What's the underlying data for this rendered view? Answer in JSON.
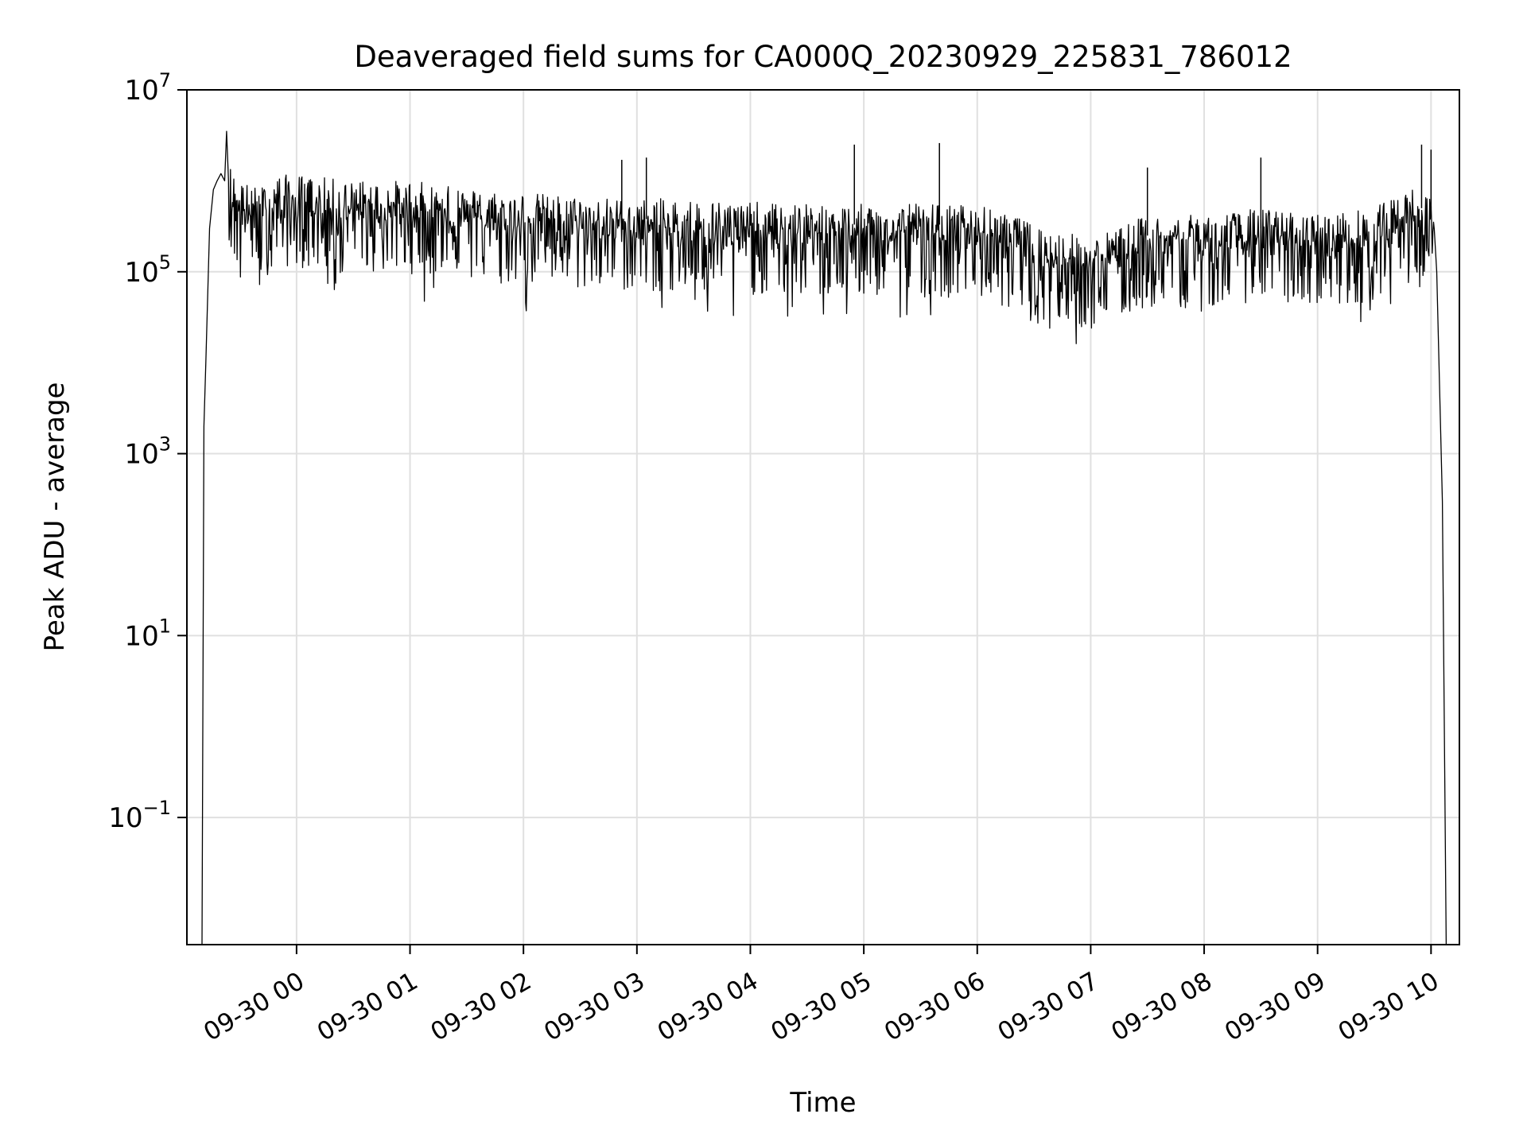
{
  "chart_data": {
    "type": "line",
    "title": "Deaveraged field sums for CA000Q_20230929_225831_786012",
    "xlabel": "Time",
    "ylabel": "Peak ADU - average",
    "yscale": "log",
    "ylim": [
      0.004,
      10000000
    ],
    "xlim": [
      "2023-09-29 23:02",
      "2023-09-30 10:15"
    ],
    "grid": true,
    "line_color": "#000000",
    "grid_color": "#e0e0e0",
    "x_ticks": [
      {
        "label": "09-30 00",
        "t": "2023-09-30 00:00"
      },
      {
        "label": "09-30 01",
        "t": "2023-09-30 01:00"
      },
      {
        "label": "09-30 02",
        "t": "2023-09-30 02:00"
      },
      {
        "label": "09-30 03",
        "t": "2023-09-30 03:00"
      },
      {
        "label": "09-30 04",
        "t": "2023-09-30 04:00"
      },
      {
        "label": "09-30 05",
        "t": "2023-09-30 05:00"
      },
      {
        "label": "09-30 06",
        "t": "2023-09-30 06:00"
      },
      {
        "label": "09-30 07",
        "t": "2023-09-30 07:00"
      },
      {
        "label": "09-30 08",
        "t": "2023-09-30 08:00"
      },
      {
        "label": "09-30 09",
        "t": "2023-09-30 09:00"
      },
      {
        "label": "09-30 10",
        "t": "2023-09-30 10:00"
      }
    ],
    "y_ticks": [
      {
        "base": "10",
        "exp": "7",
        "value": 10000000
      },
      {
        "base": "10",
        "exp": "5",
        "value": 100000
      },
      {
        "base": "10",
        "exp": "3",
        "value": 1000
      },
      {
        "base": "10",
        "exp": "1",
        "value": 10
      },
      {
        "base": "10",
        "exp": "−1",
        "value": 0.1
      }
    ],
    "series": [
      {
        "x": [
          "2023-09-29 23:10",
          "2023-09-29 23:11",
          "2023-09-29 23:12",
          "2023-09-29 23:14",
          "2023-09-29 23:16",
          "2023-09-29 23:18",
          "2023-09-29 23:20",
          "2023-09-29 23:22",
          "2023-09-29 23:23",
          "2023-09-29 23:25",
          "2023-09-29 23:30",
          "2023-09-29 23:40",
          "2023-09-29 23:50",
          "2023-09-30 00:00",
          "2023-09-30 00:30",
          "2023-09-30 01:00",
          "2023-09-30 01:30",
          "2023-09-30 02:00",
          "2023-09-30 02:30",
          "2023-09-30 03:00",
          "2023-09-30 03:30",
          "2023-09-30 04:00",
          "2023-09-30 04:30",
          "2023-09-30 05:00",
          "2023-09-30 05:30",
          "2023-09-30 06:00",
          "2023-09-30 06:30",
          "2023-09-30 07:00",
          "2023-09-30 07:30",
          "2023-09-30 08:00",
          "2023-09-30 08:30",
          "2023-09-30 09:00",
          "2023-09-30 09:30",
          "2023-09-30 09:50",
          "2023-09-30 10:00",
          "2023-09-30 10:03",
          "2023-09-30 10:06",
          "2023-09-30 10:08"
        ],
        "y": [
          0.004,
          2000,
          10000,
          300000,
          800000,
          1000000,
          1200000,
          1000000,
          3500000,
          900000,
          600000,
          500000,
          700000,
          700000,
          600000,
          600000,
          500000,
          450000,
          400000,
          380000,
          380000,
          350000,
          330000,
          330000,
          330000,
          330000,
          200000,
          140000,
          250000,
          250000,
          300000,
          250000,
          300000,
          500000,
          500000,
          100000,
          300,
          0.004
        ]
      }
    ],
    "spikes": [
      {
        "x": "2023-09-30 02:52",
        "y": 1700000
      },
      {
        "x": "2023-09-30 03:05",
        "y": 1800000
      },
      {
        "x": "2023-09-30 04:55",
        "y": 2500000
      },
      {
        "x": "2023-09-30 05:40",
        "y": 2600000
      },
      {
        "x": "2023-09-30 07:30",
        "y": 1400000
      },
      {
        "x": "2023-09-30 08:30",
        "y": 1800000
      },
      {
        "x": "2023-09-30 09:55",
        "y": 2500000
      },
      {
        "x": "2023-09-30 10:00",
        "y": 2200000
      }
    ]
  }
}
